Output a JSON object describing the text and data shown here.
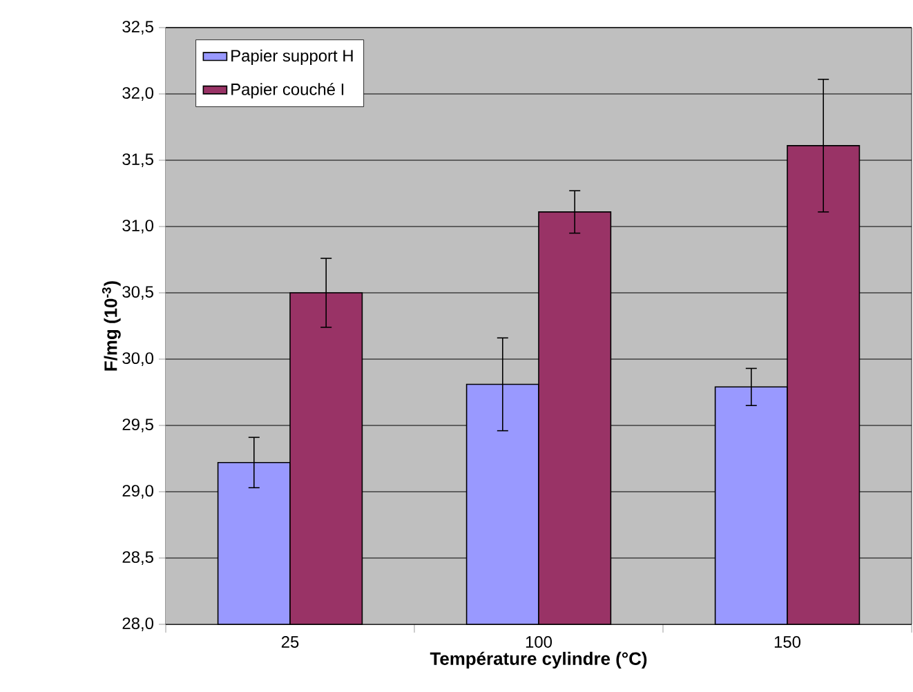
{
  "chart_data": {
    "type": "bar",
    "xlabel": "Température cylindre (°C)",
    "ylabel": "F/mg (10$^{-3}$)",
    "categories": [
      "25",
      "100",
      "150"
    ],
    "series": [
      {
        "name": "Papier support H",
        "color": "#9999ff",
        "values": [
          29.22,
          29.81,
          29.79
        ],
        "errors": [
          0.19,
          0.35,
          0.14
        ]
      },
      {
        "name": "Papier couché I",
        "color": "#993366",
        "values": [
          30.5,
          31.11,
          31.61
        ],
        "errors": [
          0.26,
          0.16,
          0.5
        ]
      }
    ],
    "ylim": [
      28.0,
      32.5
    ],
    "yticks": [
      {
        "value": 28.0,
        "label": "28,0"
      },
      {
        "value": 28.5,
        "label": "28,5"
      },
      {
        "value": 29.0,
        "label": "29,0"
      },
      {
        "value": 29.5,
        "label": "29,5"
      },
      {
        "value": 30.0,
        "label": "30,0"
      },
      {
        "value": 30.5,
        "label": "30,5"
      },
      {
        "value": 31.0,
        "label": "31,0"
      },
      {
        "value": 31.5,
        "label": "31,5"
      },
      {
        "value": 32.0,
        "label": "32,0"
      },
      {
        "value": 32.5,
        "label": "32,5"
      }
    ],
    "grid": "y",
    "legend": "top left"
  }
}
